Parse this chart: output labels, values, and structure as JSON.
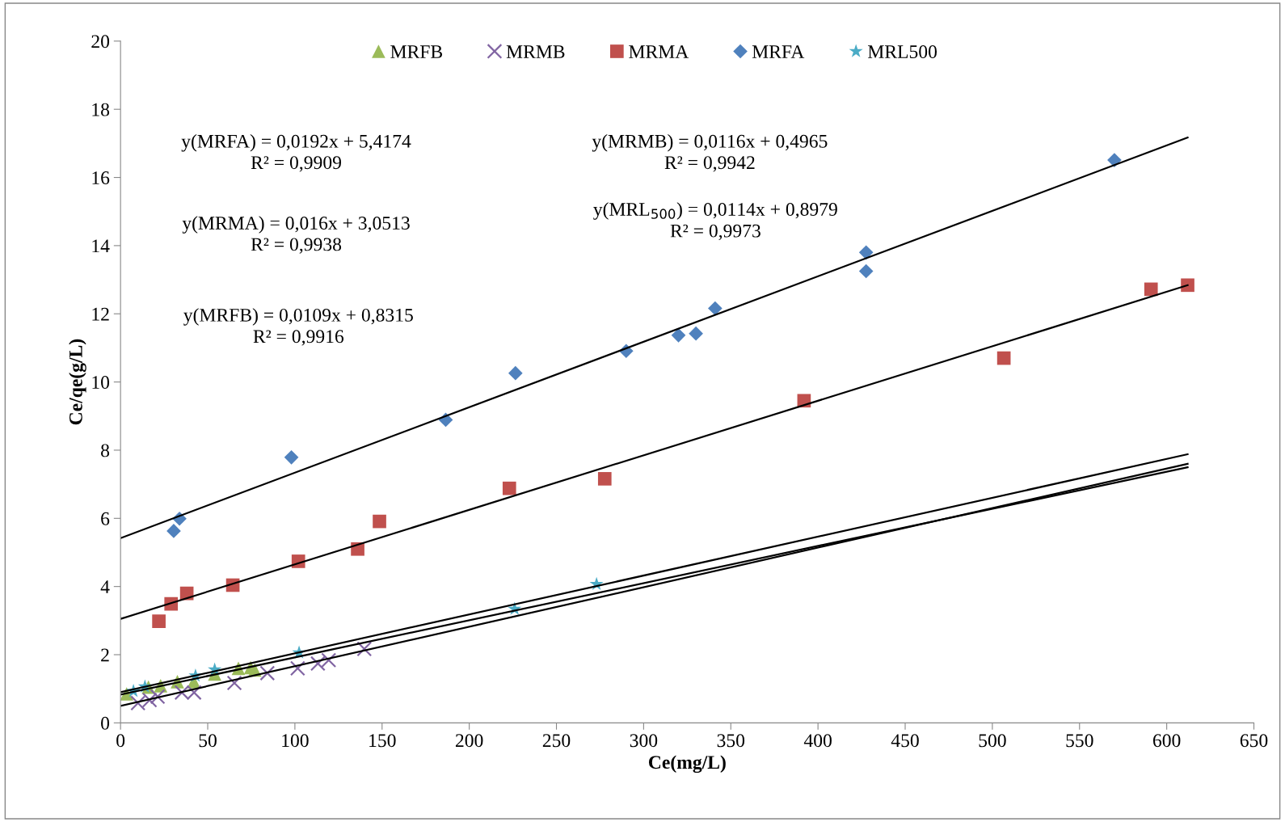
{
  "chart_data": {
    "type": "scatter",
    "xlabel": "Ce(mg/L)",
    "ylabel": "Ce/qe(g/L)",
    "xlim": [
      0,
      650
    ],
    "xticks": [
      0,
      50,
      100,
      150,
      200,
      250,
      300,
      350,
      400,
      450,
      500,
      550,
      600,
      650
    ],
    "ylim": [
      0,
      20
    ],
    "yticks": [
      0,
      2,
      4,
      6,
      8,
      10,
      12,
      14,
      16,
      18,
      20
    ],
    "grid": false,
    "legend": "top",
    "series": [
      {
        "name": "MRFB",
        "color": "#9bbb59",
        "marker": "triangle",
        "x": [
          3.5,
          16,
          23,
          32.6,
          42,
          54,
          67.6,
          74.6,
          77
        ],
        "values": [
          0.85,
          1.05,
          1.09,
          1.21,
          1.21,
          1.43,
          1.6,
          1.62,
          1.55
        ]
      },
      {
        "name": "MRMB",
        "color": "#8064a2",
        "marker": "cross",
        "x": [
          10,
          16.7,
          21.3,
          35.2,
          42.2,
          65.3,
          84.2,
          101.6,
          113.2,
          119.4,
          139.8
        ],
        "values": [
          0.58,
          0.67,
          0.77,
          0.89,
          0.89,
          1.17,
          1.46,
          1.6,
          1.74,
          1.84,
          2.17
        ]
      },
      {
        "name": "MRMA",
        "color": "#c0504d",
        "marker": "square",
        "x": [
          22,
          29,
          38,
          64.4,
          102,
          136,
          148.5,
          223,
          277.7,
          392,
          506.6,
          591,
          612
        ],
        "values": [
          2.98,
          3.49,
          3.8,
          4.04,
          4.74,
          5.1,
          5.91,
          6.88,
          7.16,
          9.45,
          10.7,
          12.72,
          12.84
        ]
      },
      {
        "name": "MRFA",
        "color": "#4f81bd",
        "marker": "diamond",
        "x": [
          30.5,
          33.8,
          98,
          186.5,
          226.5,
          290,
          320,
          330,
          341,
          427.6,
          427.6,
          570
        ],
        "values": [
          5.63,
          5.99,
          7.79,
          8.89,
          10.26,
          10.91,
          11.37,
          11.42,
          12.16,
          13.8,
          13.25,
          16.51
        ]
      },
      {
        "name": "MRL500",
        "color": "#4bacc6",
        "marker": "star",
        "x": [
          7.4,
          14,
          43,
          54,
          102.4,
          226,
          273
        ],
        "values": [
          0.93,
          1.06,
          1.38,
          1.56,
          2.06,
          3.34,
          4.07
        ]
      },
      {
        "type": "line",
        "color": "#000000",
        "x": [
          0,
          612
        ],
        "values": [
          5.42,
          17.17
        ]
      },
      {
        "type": "line",
        "color": "#000000",
        "x": [
          0,
          612
        ],
        "values": [
          3.05,
          12.84
        ]
      },
      {
        "type": "line",
        "color": "#000000",
        "x": [
          0,
          612
        ],
        "values": [
          0.5,
          7.6
        ]
      },
      {
        "type": "line",
        "color": "#000000",
        "x": [
          0,
          612
        ],
        "values": [
          0.83,
          7.5
        ]
      },
      {
        "type": "line",
        "color": "#000000",
        "x": [
          0,
          612
        ],
        "values": [
          0.9,
          7.88
        ]
      }
    ],
    "annotations": [
      "y(MRFA) = 0,0192x + 5,4174\nR² = 0,9909",
      "y(MRMA) = 0,016x + 3,0513\nR² = 0,9938",
      "y(MRFB) = 0,0109x + 0,8315\nR² = 0,9916",
      "y(MRMB) = 0,0116x + 0,4965\nR² = 0,9942",
      "y(MRL$_{500}$) = 0,0114x + 0,8979\nR² = 0,9973"
    ]
  }
}
